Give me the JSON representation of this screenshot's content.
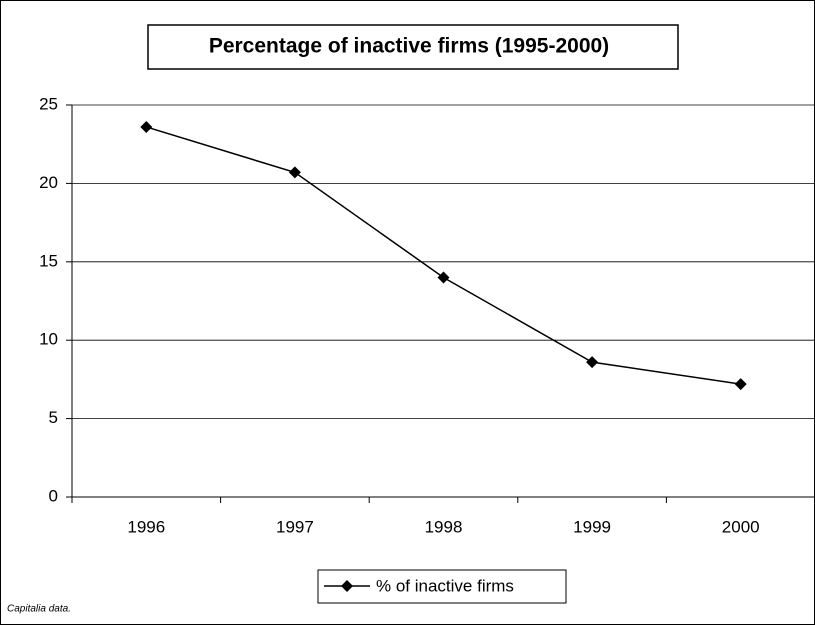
{
  "chart_data": {
    "type": "line",
    "title": "Percentage of inactive firms (1995-2000)",
    "categories": [
      "1996",
      "1997",
      "1998",
      "1999",
      "2000"
    ],
    "series": [
      {
        "name": "% of inactive firms",
        "color": "#000000",
        "values": [
          23.6,
          20.7,
          14.0,
          8.6,
          7.2
        ]
      }
    ],
    "ylim": [
      0,
      25
    ],
    "yticks": [
      0,
      5,
      10,
      15,
      20,
      25
    ],
    "grid": true,
    "legend": "bottom",
    "source": "Capitalia data."
  }
}
